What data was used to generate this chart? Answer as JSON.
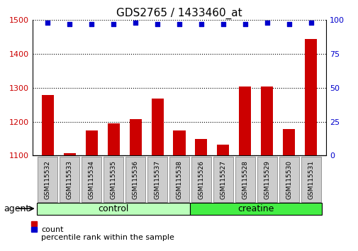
{
  "title": "GDS2765 / 1433460_at",
  "samples": [
    "GSM115532",
    "GSM115533",
    "GSM115534",
    "GSM115535",
    "GSM115536",
    "GSM115537",
    "GSM115538",
    "GSM115526",
    "GSM115527",
    "GSM115528",
    "GSM115529",
    "GSM115530",
    "GSM115531"
  ],
  "counts": [
    1278,
    1108,
    1175,
    1195,
    1207,
    1268,
    1175,
    1150,
    1133,
    1305,
    1303,
    1178,
    1445
  ],
  "percentile": [
    98,
    97,
    97,
    97,
    98,
    97,
    97,
    97,
    97,
    97,
    98,
    97,
    98
  ],
  "bar_color": "#cc0000",
  "dot_color": "#0000cc",
  "ylim_left": [
    1100,
    1500
  ],
  "ylim_right": [
    0,
    100
  ],
  "yticks_left": [
    1100,
    1200,
    1300,
    1400,
    1500
  ],
  "yticks_right": [
    0,
    25,
    50,
    75,
    100
  ],
  "groups": [
    {
      "label": "control",
      "start": 0,
      "end": 6,
      "color": "#bbffbb"
    },
    {
      "label": "creatine",
      "start": 7,
      "end": 12,
      "color": "#44ee44"
    }
  ],
  "agent_label": "agent",
  "legend_count_label": "count",
  "legend_pct_label": "percentile rank within the sample",
  "background_color": "#ffffff",
  "tick_label_color_left": "#cc0000",
  "tick_label_color_right": "#0000cc",
  "xlabel_box_color": "#cccccc",
  "xlabel_box_edge": "#888888",
  "bar_width": 0.55
}
